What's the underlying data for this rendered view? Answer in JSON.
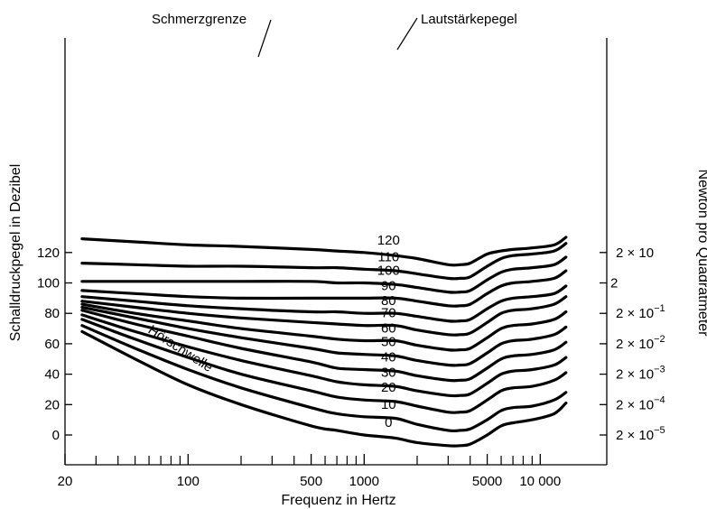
{
  "chart_data": {
    "type": "line",
    "title": "",
    "xlabel": "Frequenz in Hertz",
    "ylabel": "Schalldruckpegel in Dezibel",
    "y2label": "Newton pro Quadratmeter",
    "x_scale": "log",
    "xlim": [
      20,
      16000
    ],
    "ylim": [
      -10,
      130
    ],
    "x_ticks": [
      {
        "value": 20,
        "label": "20"
      },
      {
        "value": 100,
        "label": "100"
      },
      {
        "value": 500,
        "label": "500"
      },
      {
        "value": 1000,
        "label": "1000"
      },
      {
        "value": 5000,
        "label": "5000"
      },
      {
        "value": 10000,
        "label": "10 000"
      }
    ],
    "x_minor_ticks": [
      30,
      40,
      50,
      60,
      70,
      80,
      90,
      200,
      300,
      400,
      600,
      700,
      800,
      900,
      2000,
      3000,
      4000,
      6000,
      7000,
      8000,
      9000
    ],
    "y_ticks": [
      0,
      20,
      40,
      60,
      80,
      100,
      120
    ],
    "y2_ticks": [
      {
        "db": 120,
        "base": "2 × 10",
        "exp": ""
      },
      {
        "db": 100,
        "base": "2",
        "exp": ""
      },
      {
        "db": 80,
        "base": "2 × 10",
        "exp": "−1"
      },
      {
        "db": 60,
        "base": "2 × 10",
        "exp": "−2"
      },
      {
        "db": 40,
        "base": "2 × 10",
        "exp": "−3"
      },
      {
        "db": 20,
        "base": "2 × 10",
        "exp": "−4"
      },
      {
        "db": 0,
        "base": "2 × 10",
        "exp": "−5"
      }
    ],
    "grid": false,
    "annotations": {
      "pain_threshold": "Schmerzgrenze",
      "loudness_level": "Lautstärkepegel",
      "hearing_threshold": "Hörschwelle"
    },
    "series": [
      {
        "name": "0",
        "label_at": 1000,
        "x": [
          25,
          50,
          100,
          200,
          500,
          700,
          1000,
          1500,
          2000,
          3000,
          3500,
          4000,
          5000,
          6000,
          7000,
          9000,
          12000,
          14000
        ],
        "y": [
          68,
          50,
          33,
          20,
          6,
          3,
          0,
          -2,
          -5,
          -7,
          -7,
          -6,
          0,
          6,
          8,
          10,
          14,
          21
        ]
      },
      {
        "name": "10",
        "label_at": 1000,
        "x": [
          25,
          50,
          100,
          200,
          500,
          700,
          1000,
          1500,
          2000,
          3000,
          3500,
          4000,
          5000,
          6000,
          7000,
          9000,
          12000,
          14000
        ],
        "y": [
          72,
          57,
          43,
          31,
          18,
          14,
          12,
          11,
          7,
          3,
          3,
          4,
          10,
          16,
          18,
          19,
          23,
          28
        ]
      },
      {
        "name": "20",
        "label_at": 1000,
        "x": [
          25,
          50,
          100,
          200,
          500,
          700,
          1000,
          1500,
          2000,
          3000,
          3500,
          4000,
          5000,
          6000,
          7000,
          9000,
          12000,
          14000
        ],
        "y": [
          76,
          63,
          51,
          40,
          29,
          25,
          23,
          22,
          19,
          15,
          15,
          16,
          23,
          29,
          31,
          32,
          36,
          41
        ]
      },
      {
        "name": "30",
        "label_at": 1000,
        "x": [
          25,
          50,
          100,
          200,
          500,
          700,
          1000,
          1500,
          2000,
          3000,
          3500,
          4000,
          5000,
          6000,
          7000,
          9000,
          12000,
          14000
        ],
        "y": [
          79,
          68,
          58,
          49,
          39,
          35,
          33,
          32,
          29,
          26,
          26,
          27,
          34,
          40,
          42,
          43,
          46,
          51
        ]
      },
      {
        "name": "40",
        "label_at": 1000,
        "x": [
          25,
          50,
          100,
          200,
          500,
          700,
          1000,
          1500,
          2000,
          3000,
          3500,
          4000,
          5000,
          6000,
          7000,
          9000,
          12000,
          14000
        ],
        "y": [
          82,
          73,
          65,
          57,
          48,
          44,
          43,
          42,
          39,
          36,
          36,
          37,
          44,
          50,
          52,
          53,
          56,
          61
        ]
      },
      {
        "name": "50",
        "label_at": 1000,
        "x": [
          25,
          50,
          100,
          200,
          500,
          700,
          1000,
          1500,
          2000,
          3000,
          3500,
          4000,
          5000,
          6000,
          7000,
          9000,
          12000,
          14000
        ],
        "y": [
          84,
          77,
          70,
          64,
          57,
          54,
          53,
          52,
          49,
          46,
          46,
          47,
          54,
          60,
          62,
          63,
          66,
          71
        ]
      },
      {
        "name": "60",
        "label_at": 1000,
        "x": [
          25,
          50,
          100,
          200,
          500,
          700,
          1000,
          1500,
          2000,
          3000,
          3500,
          4000,
          5000,
          6000,
          7000,
          9000,
          12000,
          14000
        ],
        "y": [
          86,
          80,
          75,
          70,
          65,
          63,
          62,
          62,
          59,
          56,
          56,
          57,
          64,
          70,
          72,
          73,
          76,
          81
        ]
      },
      {
        "name": "70",
        "label_at": 1000,
        "x": [
          25,
          50,
          100,
          200,
          500,
          700,
          1000,
          1500,
          2000,
          3000,
          3500,
          4000,
          5000,
          6000,
          7000,
          9000,
          12000,
          14000
        ],
        "y": [
          88,
          84,
          80,
          77,
          74,
          73,
          72,
          72,
          69,
          66,
          66,
          67,
          74,
          80,
          82,
          83,
          86,
          91
        ]
      },
      {
        "name": "80",
        "label_at": 1000,
        "x": [
          25,
          50,
          100,
          200,
          500,
          700,
          1000,
          1500,
          2000,
          3000,
          3500,
          4000,
          5000,
          6000,
          7000,
          9000,
          12000,
          14000
        ],
        "y": [
          91,
          88,
          85,
          83,
          81,
          81,
          80,
          80,
          78,
          75,
          75,
          76,
          83,
          88,
          90,
          91,
          93,
          98
        ]
      },
      {
        "name": "90",
        "label_at": 1000,
        "x": [
          25,
          50,
          100,
          200,
          500,
          700,
          1000,
          1500,
          2000,
          3000,
          3500,
          4000,
          5000,
          6000,
          7000,
          9000,
          12000,
          14000
        ],
        "y": [
          95,
          93,
          91,
          90,
          90,
          90,
          90,
          90,
          88,
          85,
          85,
          86,
          93,
          98,
          100,
          101,
          103,
          108
        ]
      },
      {
        "name": "100",
        "label_at": 1000,
        "x": [
          25,
          50,
          100,
          200,
          500,
          700,
          1000,
          1500,
          2000,
          3000,
          3500,
          4000,
          5000,
          6000,
          7000,
          9000,
          12000,
          14000
        ],
        "y": [
          101,
          101,
          101,
          101,
          101,
          100,
          100,
          99,
          97,
          94,
          94,
          95,
          102,
          107,
          109,
          110,
          112,
          117
        ]
      },
      {
        "name": "110",
        "label_at": 1000,
        "x": [
          25,
          50,
          100,
          200,
          500,
          700,
          1000,
          1500,
          2000,
          3000,
          3500,
          4000,
          5000,
          6000,
          7000,
          9000,
          12000,
          14000
        ],
        "y": [
          113,
          112,
          111,
          111,
          110,
          110,
          109,
          108,
          106,
          103,
          103,
          104,
          111,
          116,
          118,
          119,
          121,
          126
        ]
      },
      {
        "name": "120",
        "label_at": 1000,
        "x": [
          25,
          50,
          100,
          200,
          500,
          700,
          1000,
          1500,
          2000,
          3000,
          3500,
          4000,
          5000,
          6000,
          7000,
          9000,
          12000,
          14000
        ],
        "y": [
          129,
          127,
          125,
          124,
          122,
          121,
          120,
          118,
          116,
          112,
          112,
          113,
          119,
          121,
          122,
          123,
          125,
          130
        ]
      }
    ]
  }
}
